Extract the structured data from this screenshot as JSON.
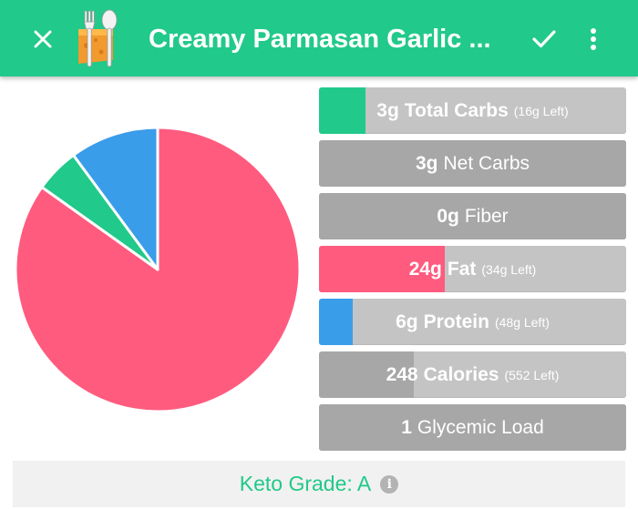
{
  "app_bar": {
    "title": "Creamy Parmasan Garlic ...",
    "icons": {
      "close": "close-icon",
      "logo": "fork-spoon-cheese-logo",
      "confirm": "check-icon",
      "menu": "more-vert-icon"
    },
    "background_color": "#21c98a"
  },
  "chart_data": {
    "type": "pie",
    "slices": [
      {
        "label": "Fat",
        "value": 84,
        "color": "#ff5b7f"
      },
      {
        "label": "Net Carbs",
        "value": 5,
        "color": "#21c98a"
      },
      {
        "label": "Protein",
        "value": 10,
        "color": "#3a9dea"
      }
    ]
  },
  "macro_bars": [
    {
      "num": "3g",
      "label": "Total Carbs",
      "sub": "(16g Left)",
      "fill": 0.15,
      "color": "#21c98a",
      "style": "light"
    },
    {
      "num": "3g",
      "label": "Net Carbs",
      "sub": "",
      "fill": 1,
      "color": "#a7a7a7",
      "style": "gray"
    },
    {
      "num": "0g",
      "label": "Fiber",
      "sub": "",
      "fill": 1,
      "color": "#a7a7a7",
      "style": "gray"
    },
    {
      "num": "24g",
      "label": "Fat",
      "sub": "(34g Left)",
      "fill": 0.41,
      "color": "#ff5b7f",
      "style": "light"
    },
    {
      "num": "6g",
      "label": "Protein",
      "sub": "(48g Left)",
      "fill": 0.11,
      "color": "#3a9dea",
      "style": "light"
    },
    {
      "num": "248",
      "label": "Calories",
      "sub": "(552 Left)",
      "fill": 0.31,
      "color": "#a7a7a7",
      "style": "light"
    },
    {
      "num": "1",
      "label": "Glycemic Load",
      "sub": "",
      "fill": 1,
      "color": "#a7a7a7",
      "style": "gray"
    }
  ],
  "keto_grade": {
    "text": "Keto Grade: A",
    "info_icon": "info-icon",
    "info_glyph": "i",
    "color": "#21c98a"
  }
}
